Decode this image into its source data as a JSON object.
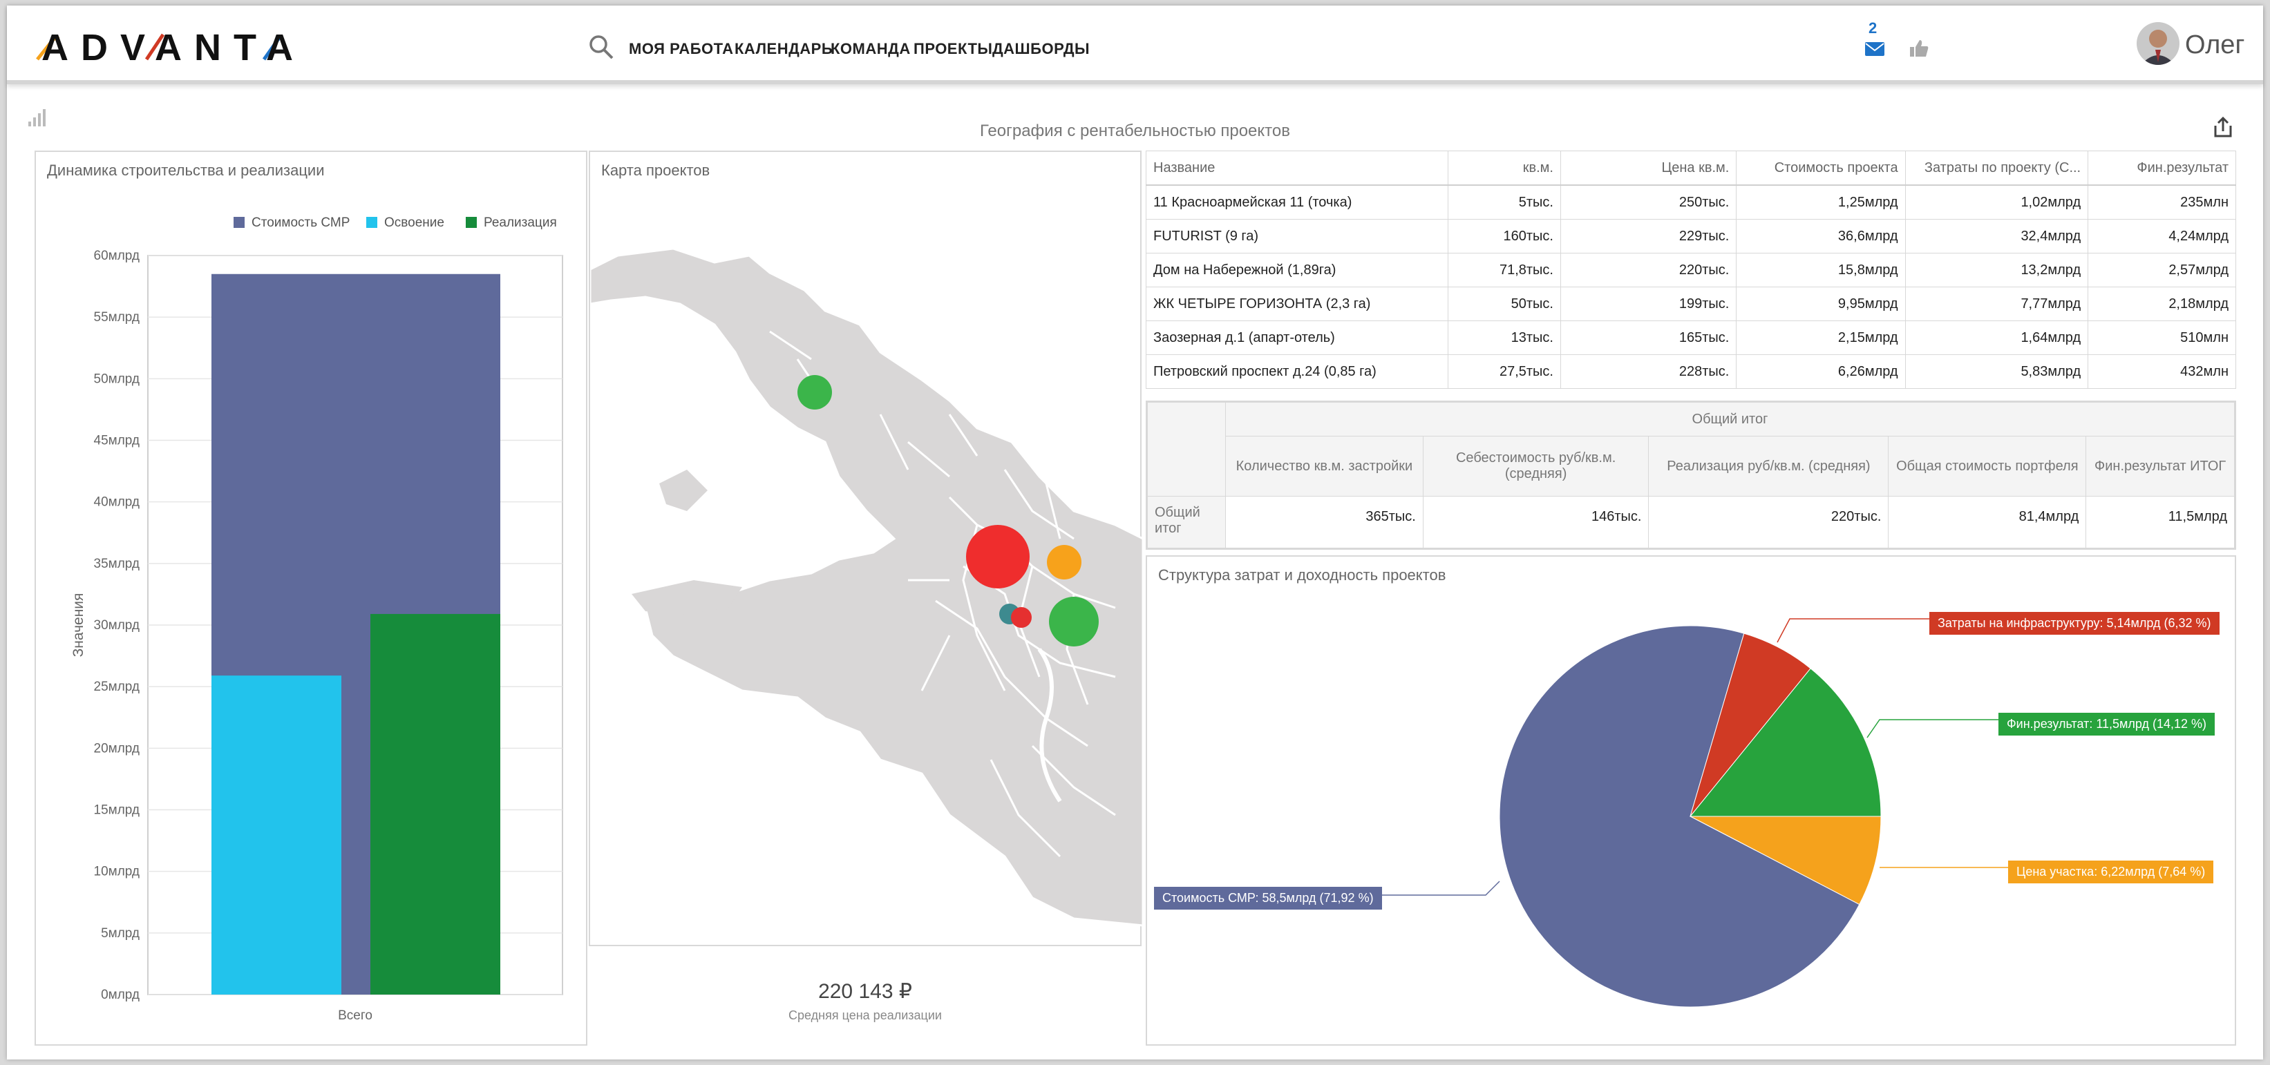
{
  "app": {
    "logo": "ADVANTA",
    "nav": [
      "МОЯ РАБОТА",
      "КАЛЕНДАРЬ",
      "КОМАНДА",
      "ПРОЕКТЫ",
      "ДАШБОРДЫ"
    ],
    "notifications": "2",
    "user": "Олег"
  },
  "dashboard": {
    "title": "География с рентабельностью проектов"
  },
  "bar_panel": {
    "title": "Динамика строительства и реализации",
    "legend": [
      "Стоимость СМР",
      "Освоение",
      "Реализация"
    ],
    "ylabel": "Значения",
    "ticks": [
      "0млрд",
      "5млрд",
      "10млрд",
      "15млрд",
      "20млрд",
      "25млрд",
      "30млрд",
      "35млрд",
      "40млрд",
      "45млрд",
      "50млрд",
      "55млрд",
      "60млрд"
    ],
    "category": "Всего"
  },
  "map_panel": {
    "title": "Карта проектов"
  },
  "kpi": {
    "value": "220 143 ₽",
    "label": "Средняя цена реализации"
  },
  "table": {
    "headers": [
      "Название",
      "кв.м.",
      "Цена кв.м.",
      "Стоимость проекта",
      "Затраты по проекту (С...",
      "Фин.результат"
    ],
    "rows": [
      [
        "11 Красноармейская 11 (точка)",
        "5тыс.",
        "250тыс.",
        "1,25млрд",
        "1,02млрд",
        "235млн"
      ],
      [
        "FUTURIST (9 га)",
        "160тыс.",
        "229тыс.",
        "36,6млрд",
        "32,4млрд",
        "4,24млрд"
      ],
      [
        "Дом на Набережной (1,89га)",
        "71,8тыс.",
        "220тыс.",
        "15,8млрд",
        "13,2млрд",
        "2,57млрд"
      ],
      [
        "ЖК ЧЕТЫРЕ ГОРИЗОНТА (2,3 га)",
        "50тыс.",
        "199тыс.",
        "9,95млрд",
        "7,77млрд",
        "2,18млрд"
      ],
      [
        "Заозерная д.1 (апарт-отель)",
        "13тыс.",
        "165тыс.",
        "2,15млрд",
        "1,64млрд",
        "510млн"
      ],
      [
        "Петровский проспект д.24 (0,85 га)",
        "27,5тыс.",
        "228тыс.",
        "6,26млрд",
        "5,83млрд",
        "432млн"
      ]
    ]
  },
  "totals": {
    "group": "Общий итог",
    "row_label": "Общий итог",
    "headers": [
      "Количество кв.м. застройки",
      "Себестоимость руб/кв.м. (средняя)",
      "Реализация руб/кв.м. (средняя)",
      "Общая стоимость портфеля",
      "Фин.результат ИТОГ"
    ],
    "values": [
      "365тыс.",
      "146тыс.",
      "220тыс.",
      "81,4млрд",
      "11,5млрд"
    ]
  },
  "pie_panel": {
    "title": "Структура затрат и доходность проектов",
    "labels": [
      "Стоимость СМР: 58,5млрд (71,92 %)",
      "Затраты на инфраструктуру: 5,14млрд (6,32 %)",
      "Фин.результат: 11,5млрд (14,12 %)",
      "Цена участка: 6,22млрд (7,64 %)"
    ]
  },
  "colors": {
    "smr": "#5f6a9b",
    "osv": "#22c3ec",
    "real": "#168c3b",
    "infra": "#d03a24",
    "fin": "#27a33d",
    "land": "#f5a21c"
  },
  "chart_data": [
    {
      "type": "bar",
      "title": "Динамика строительства и реализации",
      "categories": [
        "Всего"
      ],
      "series": [
        {
          "name": "Стоимость СМР",
          "values": [
            58.5
          ]
        },
        {
          "name": "Освоение",
          "values": [
            25.9
          ]
        },
        {
          "name": "Реализация",
          "values": [
            30.9
          ]
        }
      ],
      "ylabel": "Значения",
      "ylim": [
        0,
        60
      ],
      "unit": "млрд",
      "legend": "top-right",
      "grid": true
    },
    {
      "type": "pie",
      "title": "Структура затрат и доходность проектов",
      "labels": [
        "Стоимость СМР",
        "Затраты на инфраструктуру",
        "Фин.результат",
        "Цена участка"
      ],
      "values": [
        58.5,
        5.14,
        11.5,
        6.22
      ],
      "percent": [
        71.92,
        6.32,
        14.12,
        7.64
      ]
    }
  ]
}
